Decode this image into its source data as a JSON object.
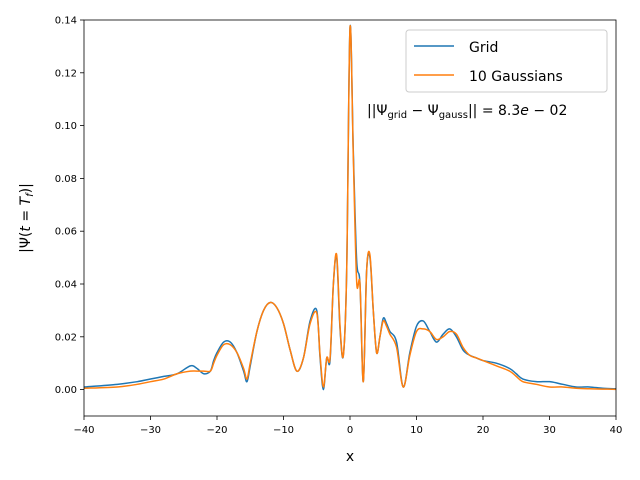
{
  "chart_data": {
    "type": "line",
    "xlabel": "x",
    "ylabel": "|Ψ(t = T_f)|",
    "xlim": [
      -40,
      40
    ],
    "ylim": [
      -0.01,
      0.14
    ],
    "xticks": [
      -40,
      -30,
      -20,
      -10,
      0,
      10,
      20,
      30,
      40
    ],
    "yticks": [
      0.0,
      0.02,
      0.04,
      0.06,
      0.08,
      0.1,
      0.12,
      0.14
    ],
    "ytick_labels": [
      "0.00",
      "0.02",
      "0.04",
      "0.06",
      "0.08",
      "0.10",
      "0.12",
      "0.14"
    ],
    "legend": {
      "position": "top-right"
    },
    "annotation": "||Ψgrid − Ψgauss|| = 8.3e − 02",
    "series": [
      {
        "name": "Grid",
        "color": "#1f77b4",
        "x": [
          -40,
          -35,
          -32,
          -30,
          -28,
          -26,
          -24,
          -23,
          -22,
          -21,
          -20.5,
          -20,
          -19,
          -18,
          -17,
          -16,
          -15.5,
          -15,
          -14,
          -13,
          -12,
          -11,
          -10,
          -9,
          -8,
          -7,
          -6,
          -5,
          -4.5,
          -4,
          -3.5,
          -3,
          -2.5,
          -2,
          -1.5,
          -1,
          -0.5,
          0,
          0.5,
          1,
          1.5,
          2,
          2.5,
          3,
          3.5,
          4,
          4.5,
          5,
          5.5,
          6,
          7,
          8,
          9,
          10,
          11,
          12,
          13,
          14,
          15,
          16,
          17,
          18,
          19,
          20,
          22,
          24,
          25,
          26,
          28,
          30,
          32,
          34,
          36,
          38,
          40
        ],
        "y": [
          0.001,
          0.002,
          0.003,
          0.004,
          0.005,
          0.006,
          0.009,
          0.008,
          0.006,
          0.007,
          0.011,
          0.014,
          0.018,
          0.018,
          0.014,
          0.007,
          0.003,
          0.009,
          0.022,
          0.03,
          0.033,
          0.031,
          0.025,
          0.015,
          0.007,
          0.012,
          0.026,
          0.03,
          0.012,
          0.0,
          0.012,
          0.011,
          0.04,
          0.05,
          0.023,
          0.013,
          0.045,
          0.137,
          0.09,
          0.049,
          0.04,
          0.003,
          0.045,
          0.05,
          0.03,
          0.014,
          0.02,
          0.027,
          0.025,
          0.022,
          0.018,
          0.001,
          0.014,
          0.024,
          0.026,
          0.022,
          0.018,
          0.021,
          0.023,
          0.02,
          0.015,
          0.013,
          0.012,
          0.011,
          0.01,
          0.008,
          0.006,
          0.004,
          0.003,
          0.003,
          0.002,
          0.001,
          0.001,
          0.0005,
          0.0003
        ]
      },
      {
        "name": "10 Gaussians",
        "color": "#ff7f0e",
        "x": [
          -40,
          -35,
          -32,
          -30,
          -28,
          -26,
          -24,
          -23,
          -22,
          -21,
          -20.5,
          -20,
          -19,
          -18,
          -17,
          -16,
          -15.5,
          -15,
          -14,
          -13,
          -12,
          -11,
          -10,
          -9,
          -8,
          -7,
          -6,
          -5,
          -4.5,
          -4,
          -3.5,
          -3,
          -2.5,
          -2,
          -1.5,
          -1,
          -0.5,
          0,
          0.5,
          1,
          1.5,
          2,
          2.5,
          3,
          3.5,
          4,
          4.5,
          5,
          5.5,
          6,
          7,
          8,
          9,
          10,
          11,
          12,
          13,
          14,
          15,
          16,
          17,
          18,
          19,
          20,
          22,
          24,
          25,
          26,
          28,
          30,
          32,
          34,
          36,
          38,
          40
        ],
        "y": [
          0.0005,
          0.001,
          0.002,
          0.003,
          0.004,
          0.006,
          0.007,
          0.007,
          0.007,
          0.007,
          0.01,
          0.013,
          0.017,
          0.017,
          0.014,
          0.008,
          0.004,
          0.01,
          0.022,
          0.03,
          0.033,
          0.031,
          0.025,
          0.015,
          0.007,
          0.012,
          0.025,
          0.029,
          0.013,
          0.001,
          0.012,
          0.012,
          0.04,
          0.051,
          0.024,
          0.013,
          0.045,
          0.137,
          0.088,
          0.041,
          0.04,
          0.003,
          0.045,
          0.051,
          0.03,
          0.014,
          0.02,
          0.026,
          0.024,
          0.021,
          0.016,
          0.001,
          0.013,
          0.022,
          0.023,
          0.022,
          0.019,
          0.02,
          0.022,
          0.021,
          0.016,
          0.013,
          0.012,
          0.011,
          0.009,
          0.007,
          0.005,
          0.003,
          0.002,
          0.001,
          0.001,
          0.0005,
          0.0003,
          0.0002,
          0.0001
        ]
      }
    ]
  }
}
